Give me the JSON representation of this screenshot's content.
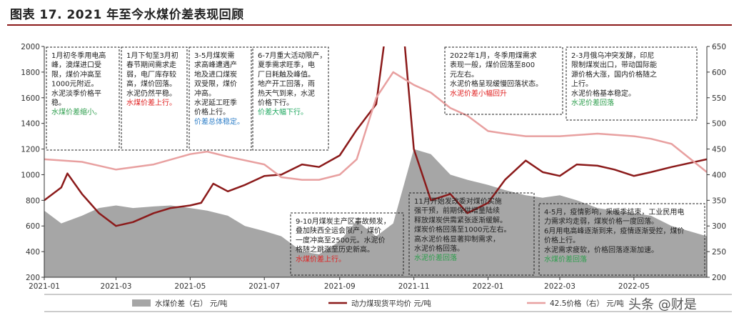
{
  "title": "图表 17. 2021 年至今水煤价差表现回顾",
  "watermark": "头条 @财是",
  "chart_data": {
    "type": "line",
    "x_ticks": [
      "2021-01",
      "2021-03",
      "2021-05",
      "2021-07",
      "2021-09",
      "2021-11",
      "2022-01",
      "2022-03",
      "2022-05"
    ],
    "x_range": [
      "2021-01-01",
      "2022-06-30"
    ],
    "ylim_left": [
      200,
      2000
    ],
    "ylim_right": [
      200,
      650
    ],
    "yticks_left": [
      200,
      400,
      600,
      800,
      1000,
      1200,
      1400,
      1600,
      1800,
      2000
    ],
    "yticks_right": [
      200,
      250,
      300,
      350,
      400,
      450,
      500,
      550,
      600,
      650
    ],
    "grid": false,
    "legend_placement": "bottom",
    "series": [
      {
        "name": "水煤价差（右） 元/吨",
        "kind": "area",
        "axis": "right",
        "color": "#a6a6a6",
        "x": [
          "2021-01-01",
          "2021-01-15",
          "2021-02-01",
          "2021-02-15",
          "2021-03-01",
          "2021-03-15",
          "2021-04-01",
          "2021-04-15",
          "2021-05-01",
          "2021-05-15",
          "2021-06-01",
          "2021-06-15",
          "2021-07-01",
          "2021-07-15",
          "2021-08-01",
          "2021-08-15",
          "2021-09-01",
          "2021-09-15",
          "2021-10-01",
          "2021-10-15",
          "2021-11-01",
          "2021-11-15",
          "2021-12-01",
          "2021-12-15",
          "2022-01-01",
          "2022-01-15",
          "2022-02-01",
          "2022-02-15",
          "2022-03-01",
          "2022-03-15",
          "2022-04-01",
          "2022-04-15",
          "2022-05-01",
          "2022-05-15",
          "2022-06-01",
          "2022-06-30"
        ],
        "values": [
          330,
          305,
          320,
          335,
          340,
          335,
          338,
          340,
          335,
          330,
          320,
          300,
          290,
          280,
          250,
          245,
          270,
          310,
          280,
          305,
          450,
          440,
          400,
          390,
          380,
          370,
          360,
          355,
          360,
          350,
          335,
          330,
          325,
          320,
          300,
          280
        ]
      },
      {
        "name": "动力煤现货平均价 元/吨",
        "kind": "line",
        "axis": "left",
        "color": "#8b1a1a",
        "x": [
          "2021-01-01",
          "2021-01-15",
          "2021-01-20",
          "2021-02-01",
          "2021-02-15",
          "2021-03-01",
          "2021-03-15",
          "2021-04-01",
          "2021-04-15",
          "2021-05-01",
          "2021-05-10",
          "2021-05-20",
          "2021-06-01",
          "2021-06-15",
          "2021-07-01",
          "2021-07-15",
          "2021-08-01",
          "2021-08-15",
          "2021-09-01",
          "2021-09-15",
          "2021-10-01",
          "2021-10-10",
          "2021-10-20",
          "2021-11-01",
          "2021-11-15",
          "2021-12-01",
          "2021-12-15",
          "2022-01-01",
          "2022-01-15",
          "2022-02-01",
          "2022-02-15",
          "2022-03-01",
          "2022-03-15",
          "2022-04-01",
          "2022-04-15",
          "2022-05-01",
          "2022-05-15",
          "2022-06-01",
          "2022-06-30"
        ],
        "values": [
          800,
          900,
          1010,
          850,
          700,
          600,
          630,
          700,
          740,
          760,
          780,
          930,
          870,
          920,
          990,
          1000,
          1080,
          1060,
          1150,
          1350,
          1550,
          2200,
          2500,
          1200,
          800,
          850,
          700,
          780,
          960,
          1110,
          1020,
          990,
          1080,
          1070,
          1040,
          990,
          1020,
          1060,
          1120
        ]
      },
      {
        "name": "42.5价格（右） 元/吨",
        "kind": "line",
        "axis": "right",
        "color": "#e8a0a0",
        "x": [
          "2021-01-01",
          "2021-02-01",
          "2021-03-01",
          "2021-04-01",
          "2021-05-01",
          "2021-05-15",
          "2021-06-01",
          "2021-07-01",
          "2021-07-15",
          "2021-08-01",
          "2021-08-15",
          "2021-09-01",
          "2021-09-15",
          "2021-10-01",
          "2021-10-15",
          "2021-11-01",
          "2021-11-15",
          "2021-12-01",
          "2021-12-15",
          "2022-01-01",
          "2022-01-15",
          "2022-02-01",
          "2022-03-01",
          "2022-04-01",
          "2022-05-01",
          "2022-05-15",
          "2022-06-01",
          "2022-06-30"
        ],
        "values": [
          430,
          425,
          410,
          420,
          440,
          445,
          435,
          420,
          395,
          390,
          390,
          400,
          430,
          550,
          600,
          575,
          560,
          530,
          515,
          485,
          480,
          475,
          475,
          480,
          475,
          470,
          460,
          405
        ]
      }
    ],
    "annotations": [
      {
        "lines": [
          "1月初冬季用电高",
          "峰，澳煤进口受",
          "限，煤价冲高至",
          "1000元附近。",
          "水泥淡季价格平",
          "稳。"
        ],
        "conclusion": "水煤价差缩小。",
        "conclusion_color": "#2e9e4d"
      },
      {
        "lines": [
          "1月下旬至3月初",
          "春节期间需求走",
          "弱，电厂库存较",
          "高，煤价回落。",
          "水泥仍然平稳。"
        ],
        "conclusion": "水煤价差上行。",
        "conclusion_color": "#e02020"
      },
      {
        "lines": [
          "3-5月煤炭需",
          "求高峰遭遇产",
          "地及进口煤炭",
          "双受限，煤价",
          "冲高。",
          "水泥延工旺季",
          "价格上行。"
        ],
        "conclusion": "价差总体稳定。",
        "conclusion_color": "#2f7fc8"
      },
      {
        "lines": [
          "6-7月重大活动限产，",
          "夏季需求旺季，电",
          "厂日耗触及峰值。",
          "地产开工回落，雨",
          "热天气到来，水泥",
          "价格下行。"
        ],
        "conclusion": "价差大幅下行。",
        "conclusion_color": "#20a860"
      },
      {
        "lines": [
          "9-10月煤炭主产区事故频发，",
          "叠加陕西全运会限产，煤价",
          "一度冲高至2500元。水泥价",
          "格随之跳涨至历史新高。"
        ],
        "conclusion": "水煤价差上行。",
        "conclusion_color": "#e02020"
      },
      {
        "lines": [
          "11月开始发改委对煤价实施",
          "强干预，前期保供增量陆续",
          "释放煤炭供需紧张逐渐缓解。",
          "煤炭价格回落至1000元左右。",
          "高水泥价格显著抑制需求，",
          "水泥价格回落。"
        ],
        "conclusion": "水泥价差回落",
        "conclusion_color": "#2e9e4d"
      },
      {
        "lines": [
          "2022年1月，冬季用煤需求",
          "表现一般，煤价回落至800",
          "元左右。",
          "水泥价格呈现缓慢回落状态。"
        ],
        "conclusion": "水泥价差小幅回升",
        "conclusion_color": "#e02020"
      },
      {
        "lines": [
          "2-3月俄乌冲突发酵，印尼",
          "限制煤炭出口，带动国际能",
          "源价格大涨，国内价格随之",
          "上行。",
          "水泥价格基本稳定。"
        ],
        "conclusion": "水泥价差回落",
        "conclusion_color": "#2e9e4d"
      },
      {
        "lines": [
          "4-5月，疫情影响，采暖季结束，工业民用电",
          "力需求均走弱，煤炭价格一度回落。",
          "6月用电高峰逐渐到来，疫情逐渐受控，煤价",
          "价格上行。",
          "水泥需求疲软，价格回落逐渐加速。"
        ],
        "conclusion": "水煤价差回落",
        "conclusion_color": "#2e9e4d"
      }
    ]
  }
}
